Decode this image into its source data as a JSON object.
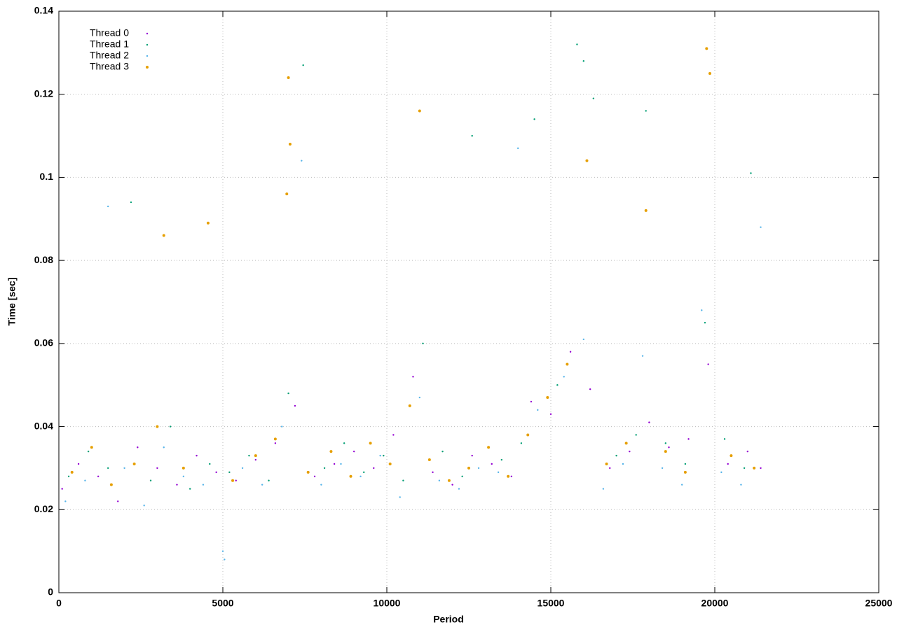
{
  "chart_data": {
    "type": "scatter",
    "xlabel": "Period",
    "ylabel": "Time [sec]",
    "xlim": [
      0,
      25000
    ],
    "ylim": [
      0,
      0.14
    ],
    "xticks": [
      0,
      5000,
      10000,
      15000,
      20000,
      25000
    ],
    "yticks": [
      0,
      0.02,
      0.04,
      0.06,
      0.08,
      0.1,
      0.12,
      0.14
    ],
    "grid": true,
    "legend": "top-left",
    "series": [
      {
        "name": "Thread 0",
        "color": "#9400d3",
        "x": [
          100,
          600,
          1200,
          1800,
          2400,
          3000,
          3600,
          4200,
          4800,
          5400,
          6000,
          6600,
          7200,
          7800,
          8400,
          9000,
          9600,
          10200,
          10800,
          11400,
          12000,
          12600,
          13200,
          13800,
          14400,
          15000,
          15600,
          16200,
          16800,
          17400,
          18000,
          18600,
          19200,
          19800,
          20400,
          21000,
          21400
        ],
        "values": [
          0.025,
          0.031,
          0.028,
          0.022,
          0.035,
          0.03,
          0.026,
          0.033,
          0.029,
          0.027,
          0.032,
          0.036,
          0.045,
          0.028,
          0.031,
          0.034,
          0.03,
          0.038,
          0.052,
          0.029,
          0.026,
          0.033,
          0.031,
          0.028,
          0.046,
          0.043,
          0.058,
          0.049,
          0.03,
          0.034,
          0.041,
          0.035,
          0.037,
          0.055,
          0.031,
          0.034,
          0.03
        ]
      },
      {
        "name": "Thread 1",
        "color": "#009e73",
        "x": [
          300,
          900,
          1500,
          2200,
          2800,
          3400,
          4000,
          4600,
          5200,
          5800,
          6400,
          7000,
          7450,
          8100,
          8700,
          9300,
          9900,
          10500,
          11100,
          11700,
          12300,
          12600,
          13500,
          14100,
          14500,
          15200,
          15800,
          16000,
          16300,
          17000,
          17600,
          17900,
          18500,
          19100,
          19700,
          20300,
          20900,
          21100
        ],
        "values": [
          0.028,
          0.034,
          0.03,
          0.094,
          0.027,
          0.04,
          0.025,
          0.031,
          0.029,
          0.033,
          0.027,
          0.048,
          0.127,
          0.03,
          0.036,
          0.029,
          0.033,
          0.027,
          0.06,
          0.034,
          0.028,
          0.11,
          0.032,
          0.036,
          0.114,
          0.05,
          0.132,
          0.128,
          0.119,
          0.033,
          0.038,
          0.116,
          0.036,
          0.031,
          0.065,
          0.037,
          0.03,
          0.101
        ]
      },
      {
        "name": "Thread 2",
        "color": "#56b4e9",
        "x": [
          200,
          800,
          1500,
          2000,
          2600,
          3200,
          3800,
          4400,
          5000,
          5050,
          5600,
          6200,
          6800,
          7400,
          8000,
          8600,
          9200,
          9800,
          10400,
          11000,
          11600,
          12200,
          12800,
          13400,
          14000,
          14600,
          15400,
          16000,
          16600,
          17200,
          17800,
          18400,
          19000,
          19600,
          20200,
          20800,
          21400
        ],
        "values": [
          0.022,
          0.027,
          0.093,
          0.03,
          0.021,
          0.035,
          0.028,
          0.026,
          0.01,
          0.008,
          0.03,
          0.026,
          0.04,
          0.104,
          0.026,
          0.031,
          0.028,
          0.033,
          0.023,
          0.047,
          0.027,
          0.025,
          0.03,
          0.029,
          0.107,
          0.044,
          0.052,
          0.061,
          0.025,
          0.031,
          0.057,
          0.03,
          0.026,
          0.068,
          0.029,
          0.026,
          0.088
        ]
      },
      {
        "name": "Thread 3",
        "color": "#e69f00",
        "x": [
          400,
          1000,
          1600,
          2300,
          3000,
          3200,
          3800,
          4550,
          5300,
          6000,
          6600,
          6950,
          7000,
          7050,
          7600,
          8300,
          8900,
          9500,
          10100,
          10700,
          11000,
          11300,
          11900,
          12500,
          13100,
          13700,
          14300,
          14900,
          15500,
          16100,
          16700,
          17300,
          17900,
          18500,
          19100,
          19750,
          19850,
          20500,
          21200
        ],
        "values": [
          0.029,
          0.035,
          0.026,
          0.031,
          0.04,
          0.086,
          0.03,
          0.089,
          0.027,
          0.033,
          0.037,
          0.096,
          0.124,
          0.108,
          0.029,
          0.034,
          0.028,
          0.036,
          0.031,
          0.045,
          0.116,
          0.032,
          0.027,
          0.03,
          0.035,
          0.028,
          0.038,
          0.047,
          0.055,
          0.104,
          0.031,
          0.036,
          0.092,
          0.034,
          0.029,
          0.131,
          0.125,
          0.033,
          0.03
        ]
      }
    ]
  }
}
